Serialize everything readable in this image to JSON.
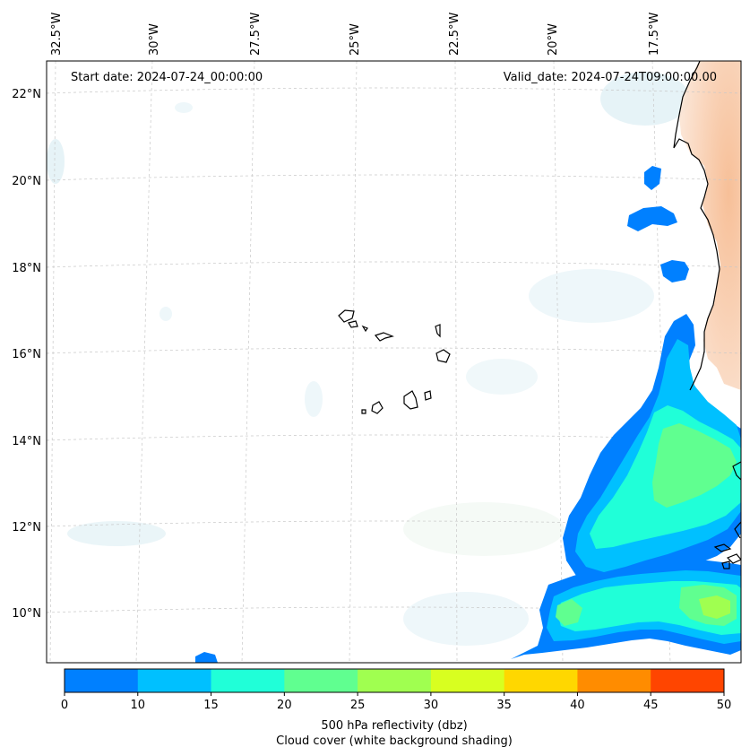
{
  "map": {
    "start_label": "Start date: 2024-07-24_00:00:00",
    "valid_label": "Valid_date: 2024-07-24T09:00:00.00",
    "lon_labels": [
      "32.5°W",
      "30°W",
      "27.5°W",
      "25°W",
      "22.5°W",
      "20°W",
      "17.5°W"
    ],
    "lat_labels": [
      "22°N",
      "20°N",
      "18°N",
      "16°N",
      "14°N",
      "12°N",
      "10°N"
    ],
    "gridlines": true
  },
  "colorbar": {
    "ticks": [
      "0",
      "10",
      "15",
      "20",
      "25",
      "30",
      "35",
      "40",
      "45",
      "50"
    ],
    "colors": [
      "#0080ff",
      "#00c0ff",
      "#20ffd8",
      "#60ff90",
      "#a0ff50",
      "#d8ff20",
      "#ffd700",
      "#ff8c00",
      "#ff4500"
    ],
    "label": "500 hPa reflectivity (dbz)",
    "sublabel": "Cloud cover (white background shading)"
  }
}
